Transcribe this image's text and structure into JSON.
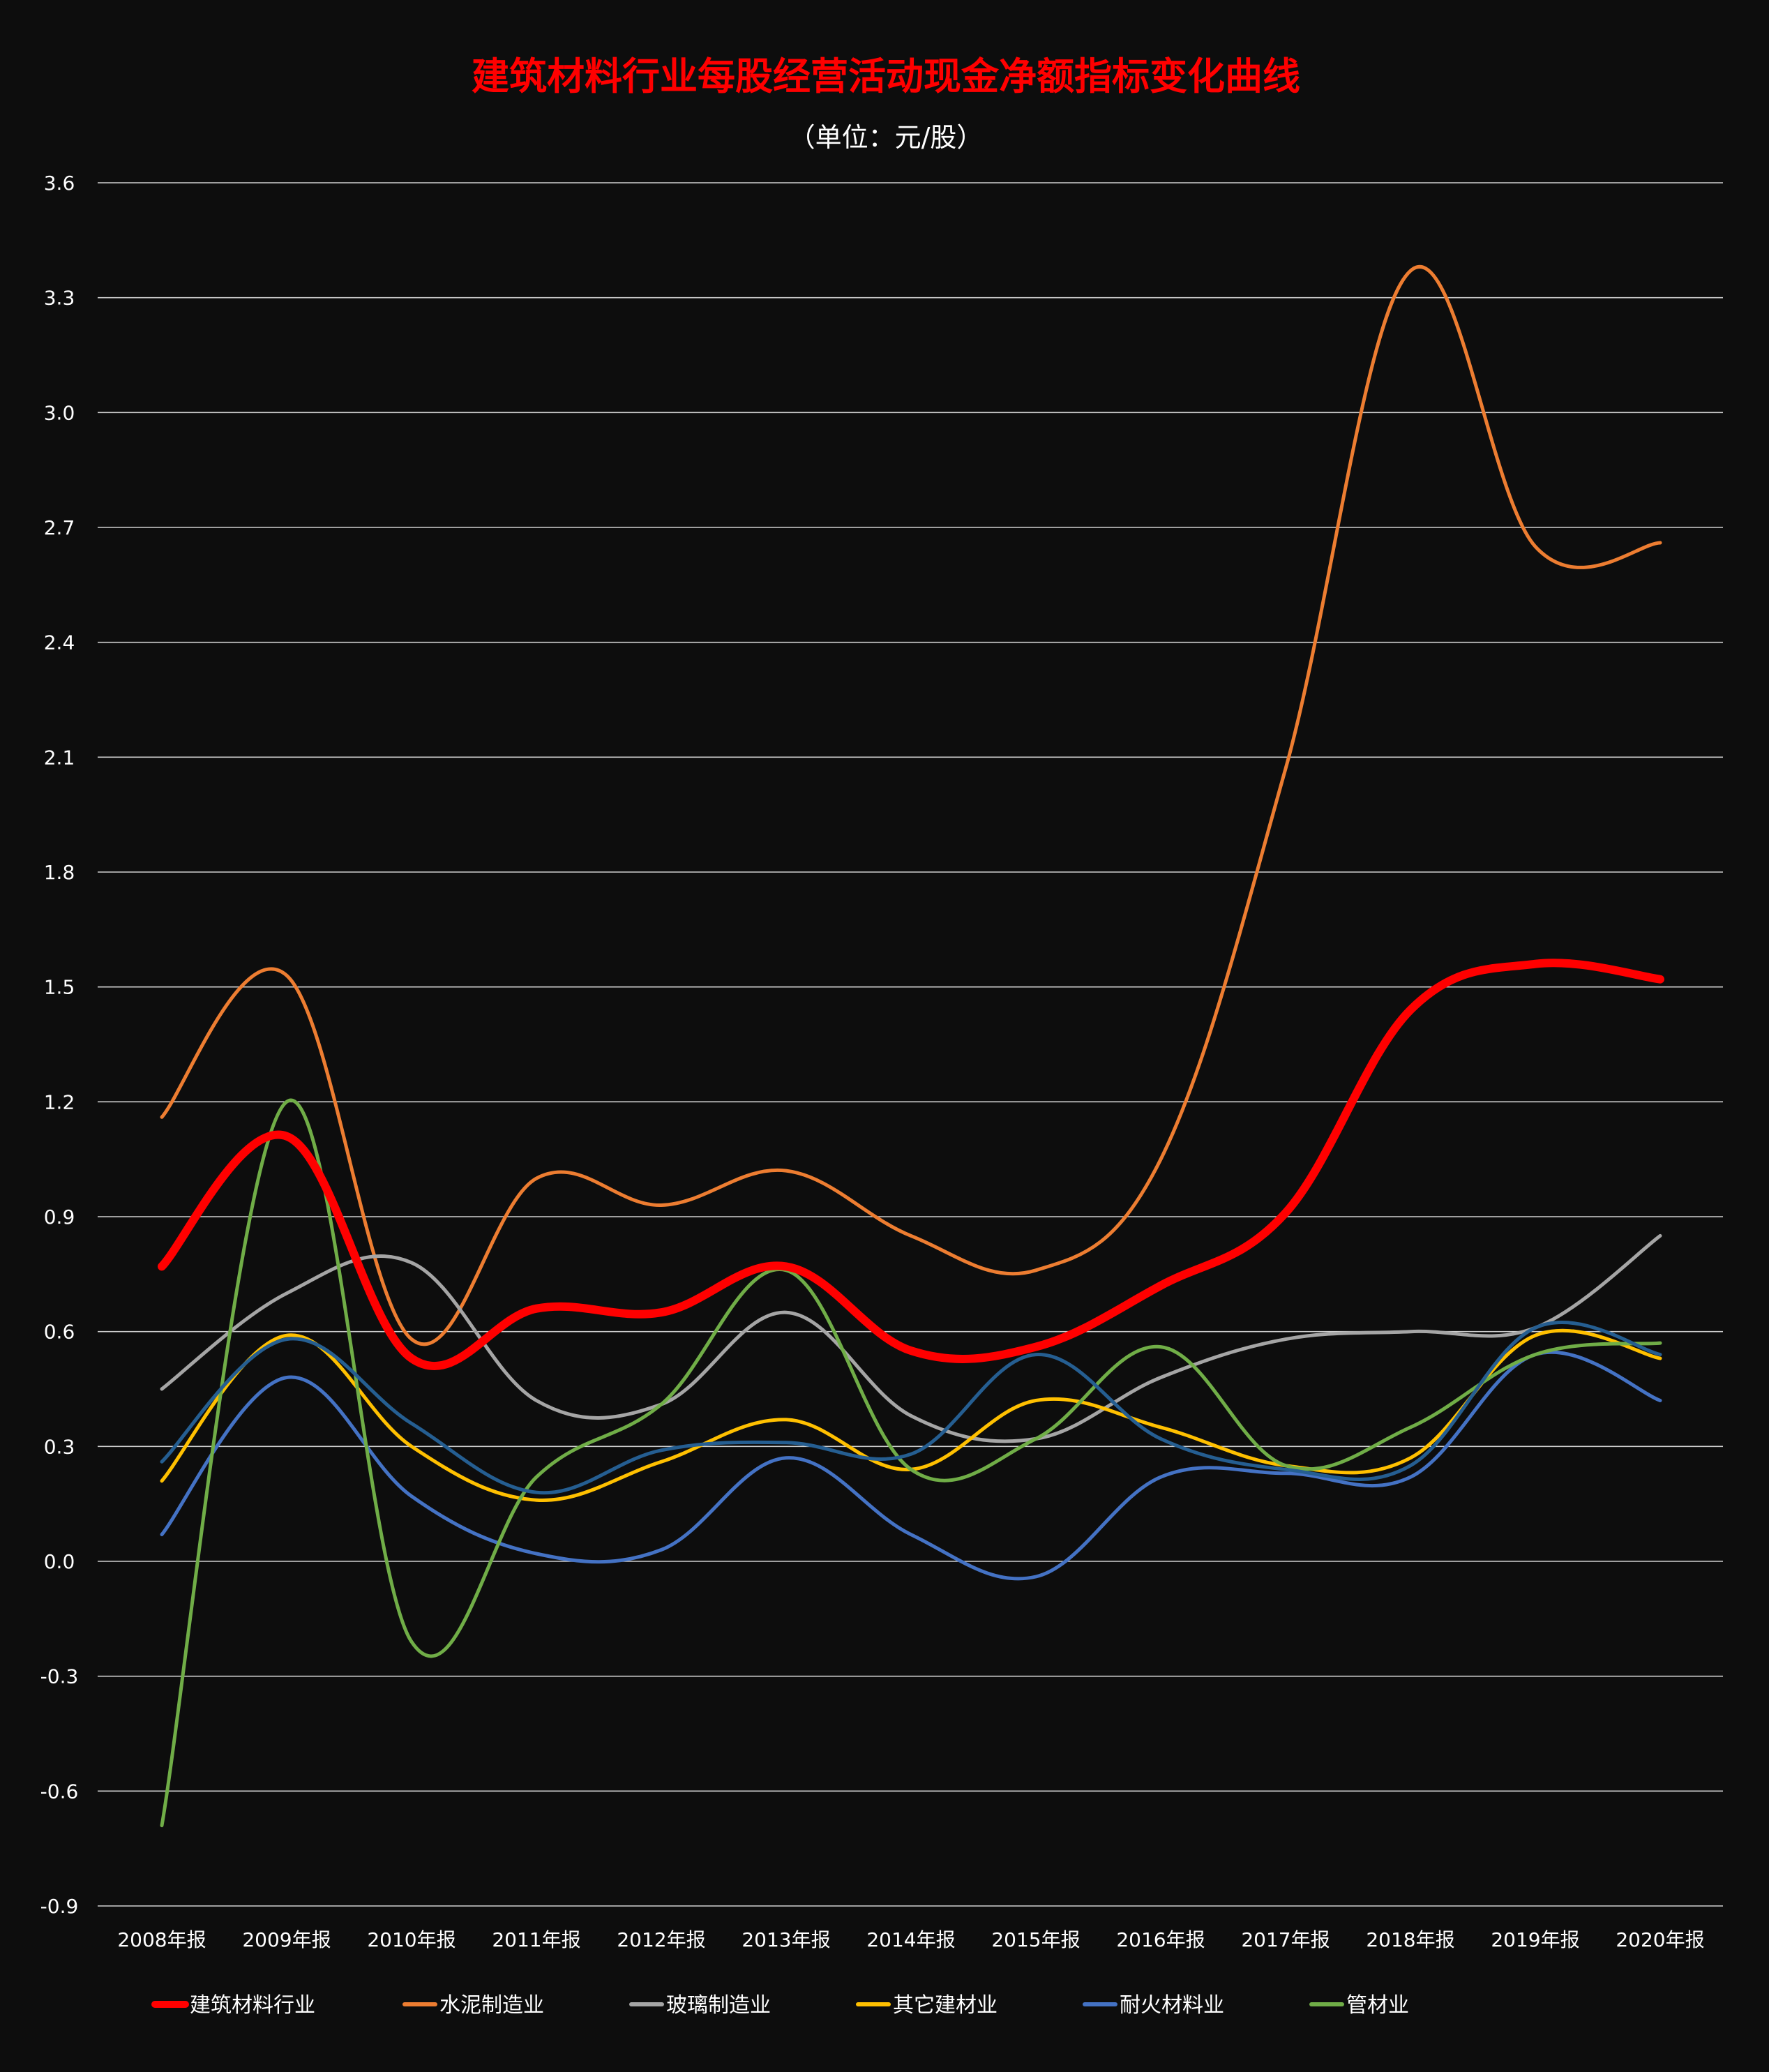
{
  "chart_data": {
    "type": "line",
    "title": "建筑材料行业每股经营活动现金净额指标变化曲线",
    "subtitle": "（单位：元/股）",
    "xlabel": "",
    "ylabel": "",
    "categories": [
      "2008年报",
      "2009年报",
      "2010年报",
      "2011年报",
      "2012年报",
      "2013年报",
      "2014年报",
      "2015年报",
      "2016年报",
      "2017年报",
      "2018年报",
      "2019年报",
      "2020年报"
    ],
    "ylim": [
      -0.9,
      3.6
    ],
    "yticks": [
      "3.6",
      "3.3",
      "3.0",
      "2.7",
      "2.4",
      "2.1",
      "1.8",
      "1.5",
      "1.2",
      "0.9",
      "0.6",
      "0.3",
      "0.0",
      "-0.3",
      "-0.6",
      "-0.9"
    ],
    "grid": true,
    "legend_position": "bottom",
    "series": [
      {
        "name": "建筑材料行业",
        "color": "#ff0000",
        "width": 12,
        "values": [
          0.77,
          1.11,
          0.53,
          0.66,
          0.65,
          0.77,
          0.55,
          0.56,
          0.72,
          0.91,
          1.44,
          1.56,
          1.52
        ]
      },
      {
        "name": "水泥制造业",
        "color": "#ed7d31",
        "width": 5,
        "values": [
          1.16,
          1.53,
          0.58,
          1.0,
          0.93,
          1.02,
          0.85,
          0.76,
          1.05,
          2.07,
          3.37,
          2.65,
          2.66
        ]
      },
      {
        "name": "玻璃制造业",
        "color": "#a5a5a5",
        "width": 5,
        "values": [
          0.45,
          0.7,
          0.78,
          0.42,
          0.41,
          0.65,
          0.38,
          0.32,
          0.48,
          0.58,
          0.6,
          0.61,
          0.85
        ]
      },
      {
        "name": "其它建材业",
        "color": "#ffc000",
        "width": 5,
        "values": [
          0.21,
          0.59,
          0.3,
          0.16,
          0.26,
          0.37,
          0.24,
          0.42,
          0.35,
          0.25,
          0.27,
          0.59,
          0.53
        ]
      },
      {
        "name": "耐火材料业",
        "color": "#4472c4",
        "width": 5,
        "values": [
          0.07,
          0.48,
          0.17,
          0.02,
          0.03,
          0.27,
          0.07,
          -0.04,
          0.22,
          0.23,
          0.22,
          0.54,
          0.42
        ]
      },
      {
        "name": "管材业",
        "color": "#70ad47",
        "width": 5,
        "values": [
          -0.69,
          1.2,
          -0.21,
          0.22,
          0.41,
          0.76,
          0.24,
          0.32,
          0.56,
          0.25,
          0.35,
          0.54,
          0.57
        ]
      },
      {
        "name": "",
        "color": "#255e91",
        "width": 5,
        "values": [
          0.26,
          0.58,
          0.36,
          0.18,
          0.29,
          0.31,
          0.28,
          0.54,
          0.32,
          0.24,
          0.25,
          0.61,
          0.54
        ]
      }
    ]
  },
  "colors": {
    "background": "#0d0d0d",
    "title": "#ff0000",
    "subtitle": "#ffffff",
    "text": "#ffffff",
    "grid": "#d0d0d0"
  }
}
